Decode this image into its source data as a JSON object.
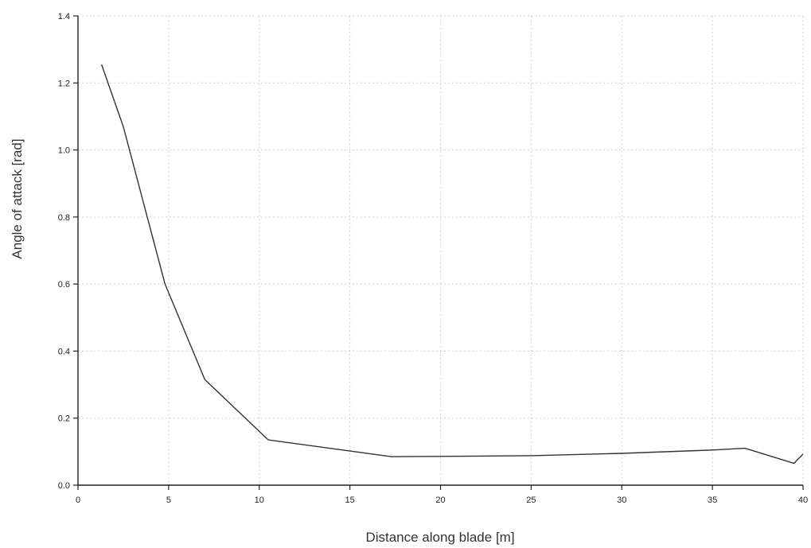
{
  "chart_data": {
    "type": "line",
    "title": "",
    "xlabel": "Distance along blade [m]",
    "ylabel": "Angle of attack  [rad]",
    "xlim": [
      0,
      40
    ],
    "ylim": [
      0,
      1.4
    ],
    "xticks": [
      0,
      5,
      10,
      15,
      20,
      25,
      30,
      35,
      40
    ],
    "yticks": [
      0.0,
      0.2,
      0.4,
      0.6,
      0.8,
      1.0,
      1.2,
      1.4
    ],
    "xtick_labels": [
      "0",
      "5",
      "10",
      "15",
      "20",
      "25",
      "30",
      "35",
      "40"
    ],
    "ytick_labels": [
      "0.0",
      "0.2",
      "0.4",
      "0.6",
      "0.8",
      "1.0",
      "1.2",
      "1.4"
    ],
    "grid": true,
    "legend": "none",
    "series": [
      {
        "x": [
          1.3,
          2.5,
          4.8,
          7.0,
          10.5,
          17.3,
          20.0,
          25.0,
          30.0,
          35.0,
          36.8,
          39.5,
          40.0
        ],
        "y": [
          1.255,
          1.07,
          0.6,
          0.315,
          0.135,
          0.085,
          0.086,
          0.088,
          0.095,
          0.105,
          0.11,
          0.065,
          0.093
        ]
      }
    ],
    "colors": {
      "line": "#333333",
      "axis": "#222222",
      "grid": "#cfcfcf"
    }
  }
}
